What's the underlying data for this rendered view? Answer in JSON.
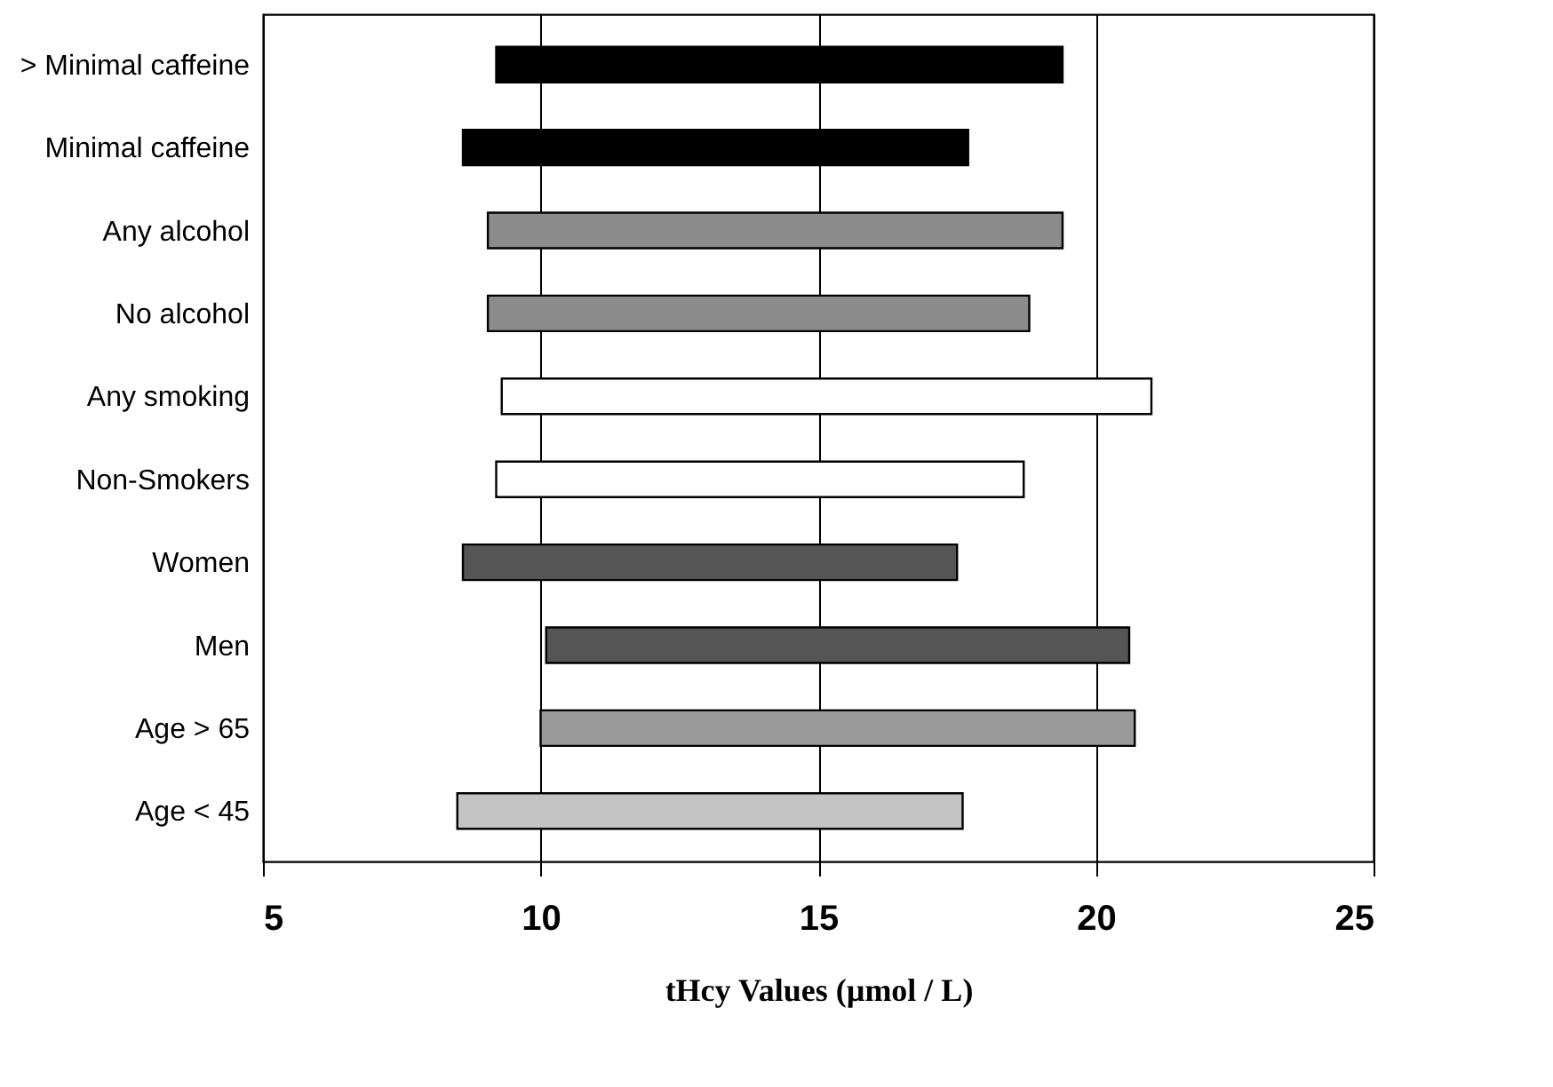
{
  "chart_data": {
    "type": "bar",
    "orientation": "horizontal",
    "xlabel": "tHcy Values (µmol / L)",
    "categories": [
      "> Minimal caffeine",
      "Minimal caffeine",
      "Any alcohol",
      "No alcohol",
      "Any smoking",
      "Non-Smokers",
      "Women",
      "Men",
      "Age > 65",
      "Age < 45"
    ],
    "base": [
      9.2,
      8.6,
      9.05,
      9.05,
      9.3,
      9.2,
      8.6,
      10.1,
      10.0,
      8.5
    ],
    "values": [
      10.2,
      9.1,
      10.35,
      9.75,
      11.7,
      9.5,
      8.9,
      10.5,
      10.7,
      9.1
    ],
    "colors": [
      "#000000",
      "#000000",
      "#8c8c8c",
      "#8c8c8c",
      "#ffffff",
      "#ffffff",
      "#555555",
      "#555555",
      "#9a9a9a",
      "#c4c4c4"
    ],
    "xlim": [
      5,
      25
    ],
    "xticks": [
      5,
      10,
      15,
      20,
      25
    ],
    "grid": "x"
  }
}
